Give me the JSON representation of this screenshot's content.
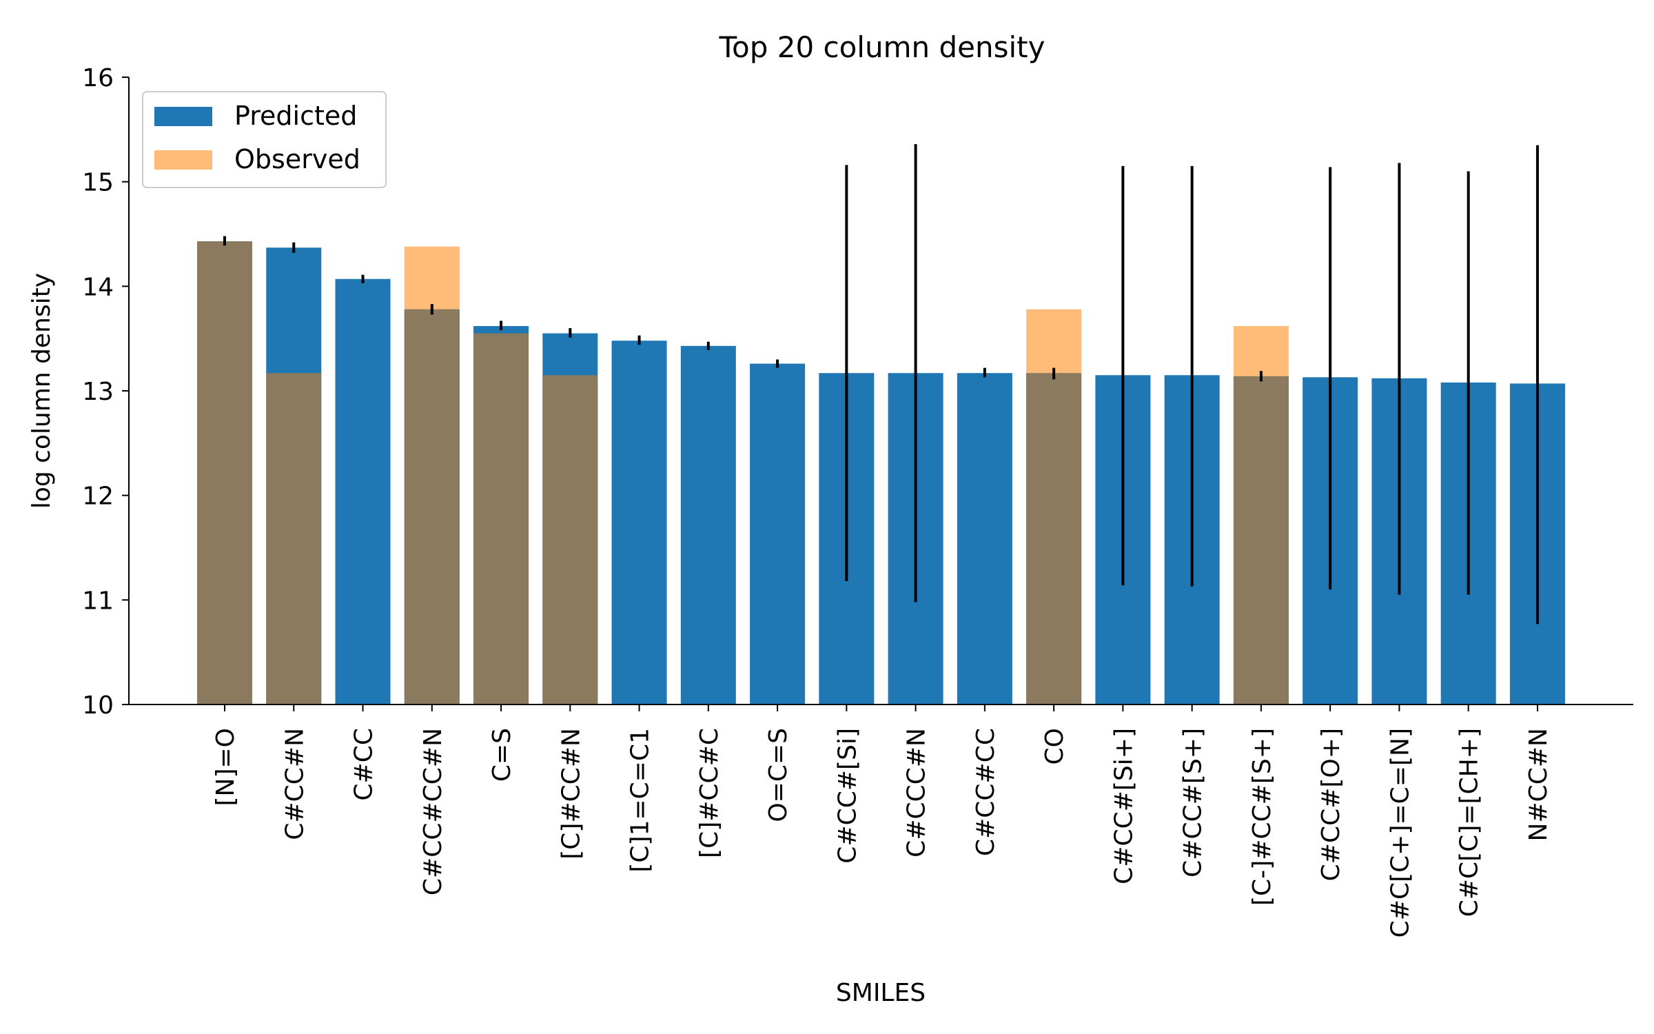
{
  "chart_data": {
    "type": "bar",
    "title": "Top 20 column density",
    "xlabel": "SMILES",
    "ylabel": "log column density",
    "ylim": [
      10,
      16
    ],
    "yticks": [
      10,
      11,
      12,
      13,
      14,
      15,
      16
    ],
    "grid": false,
    "legend_placement": "top-left",
    "categories": [
      "[N]=O",
      "C#CC#N",
      "C#CC",
      "C#CC#CC#N",
      "C=S",
      "[C]#CC#N",
      "[C]1=C=C1",
      "[C]#CC#C",
      "O=C=S",
      "C#CC#[Si]",
      "C#CCC#N",
      "C#CC#CC",
      "CO",
      "C#CC#[Si+]",
      "C#CC#[S+]",
      "[C-]#CC#[S+]",
      "C#CC#[O+]",
      "C#C[C+]=C=[N]",
      "C#C[C]=[CH+]",
      "N#CC#N"
    ],
    "series": [
      {
        "name": "Predicted",
        "color": "#1f77b4",
        "values": [
          14.43,
          14.37,
          14.07,
          13.78,
          13.62,
          13.55,
          13.48,
          13.43,
          13.26,
          13.17,
          13.17,
          13.17,
          13.17,
          13.15,
          13.15,
          13.14,
          13.13,
          13.12,
          13.08,
          13.07
        ],
        "error_low": [
          14.39,
          14.32,
          14.03,
          13.73,
          13.58,
          13.51,
          13.44,
          13.39,
          13.22,
          11.18,
          10.98,
          13.13,
          13.11,
          11.14,
          11.13,
          13.09,
          11.1,
          11.05,
          11.05,
          10.77
        ],
        "error_high": [
          14.48,
          14.42,
          14.11,
          13.83,
          13.67,
          13.6,
          13.53,
          13.47,
          13.3,
          15.16,
          15.36,
          13.22,
          13.22,
          15.15,
          15.15,
          13.19,
          15.14,
          15.18,
          15.1,
          15.35
        ]
      },
      {
        "name": "Observed",
        "color": "#ffbb78",
        "values": [
          14.43,
          13.17,
          null,
          14.38,
          13.55,
          13.15,
          null,
          null,
          null,
          null,
          null,
          null,
          13.78,
          null,
          null,
          13.62,
          null,
          null,
          null,
          null
        ]
      }
    ],
    "overlap_color": "#8c7a5e"
  }
}
